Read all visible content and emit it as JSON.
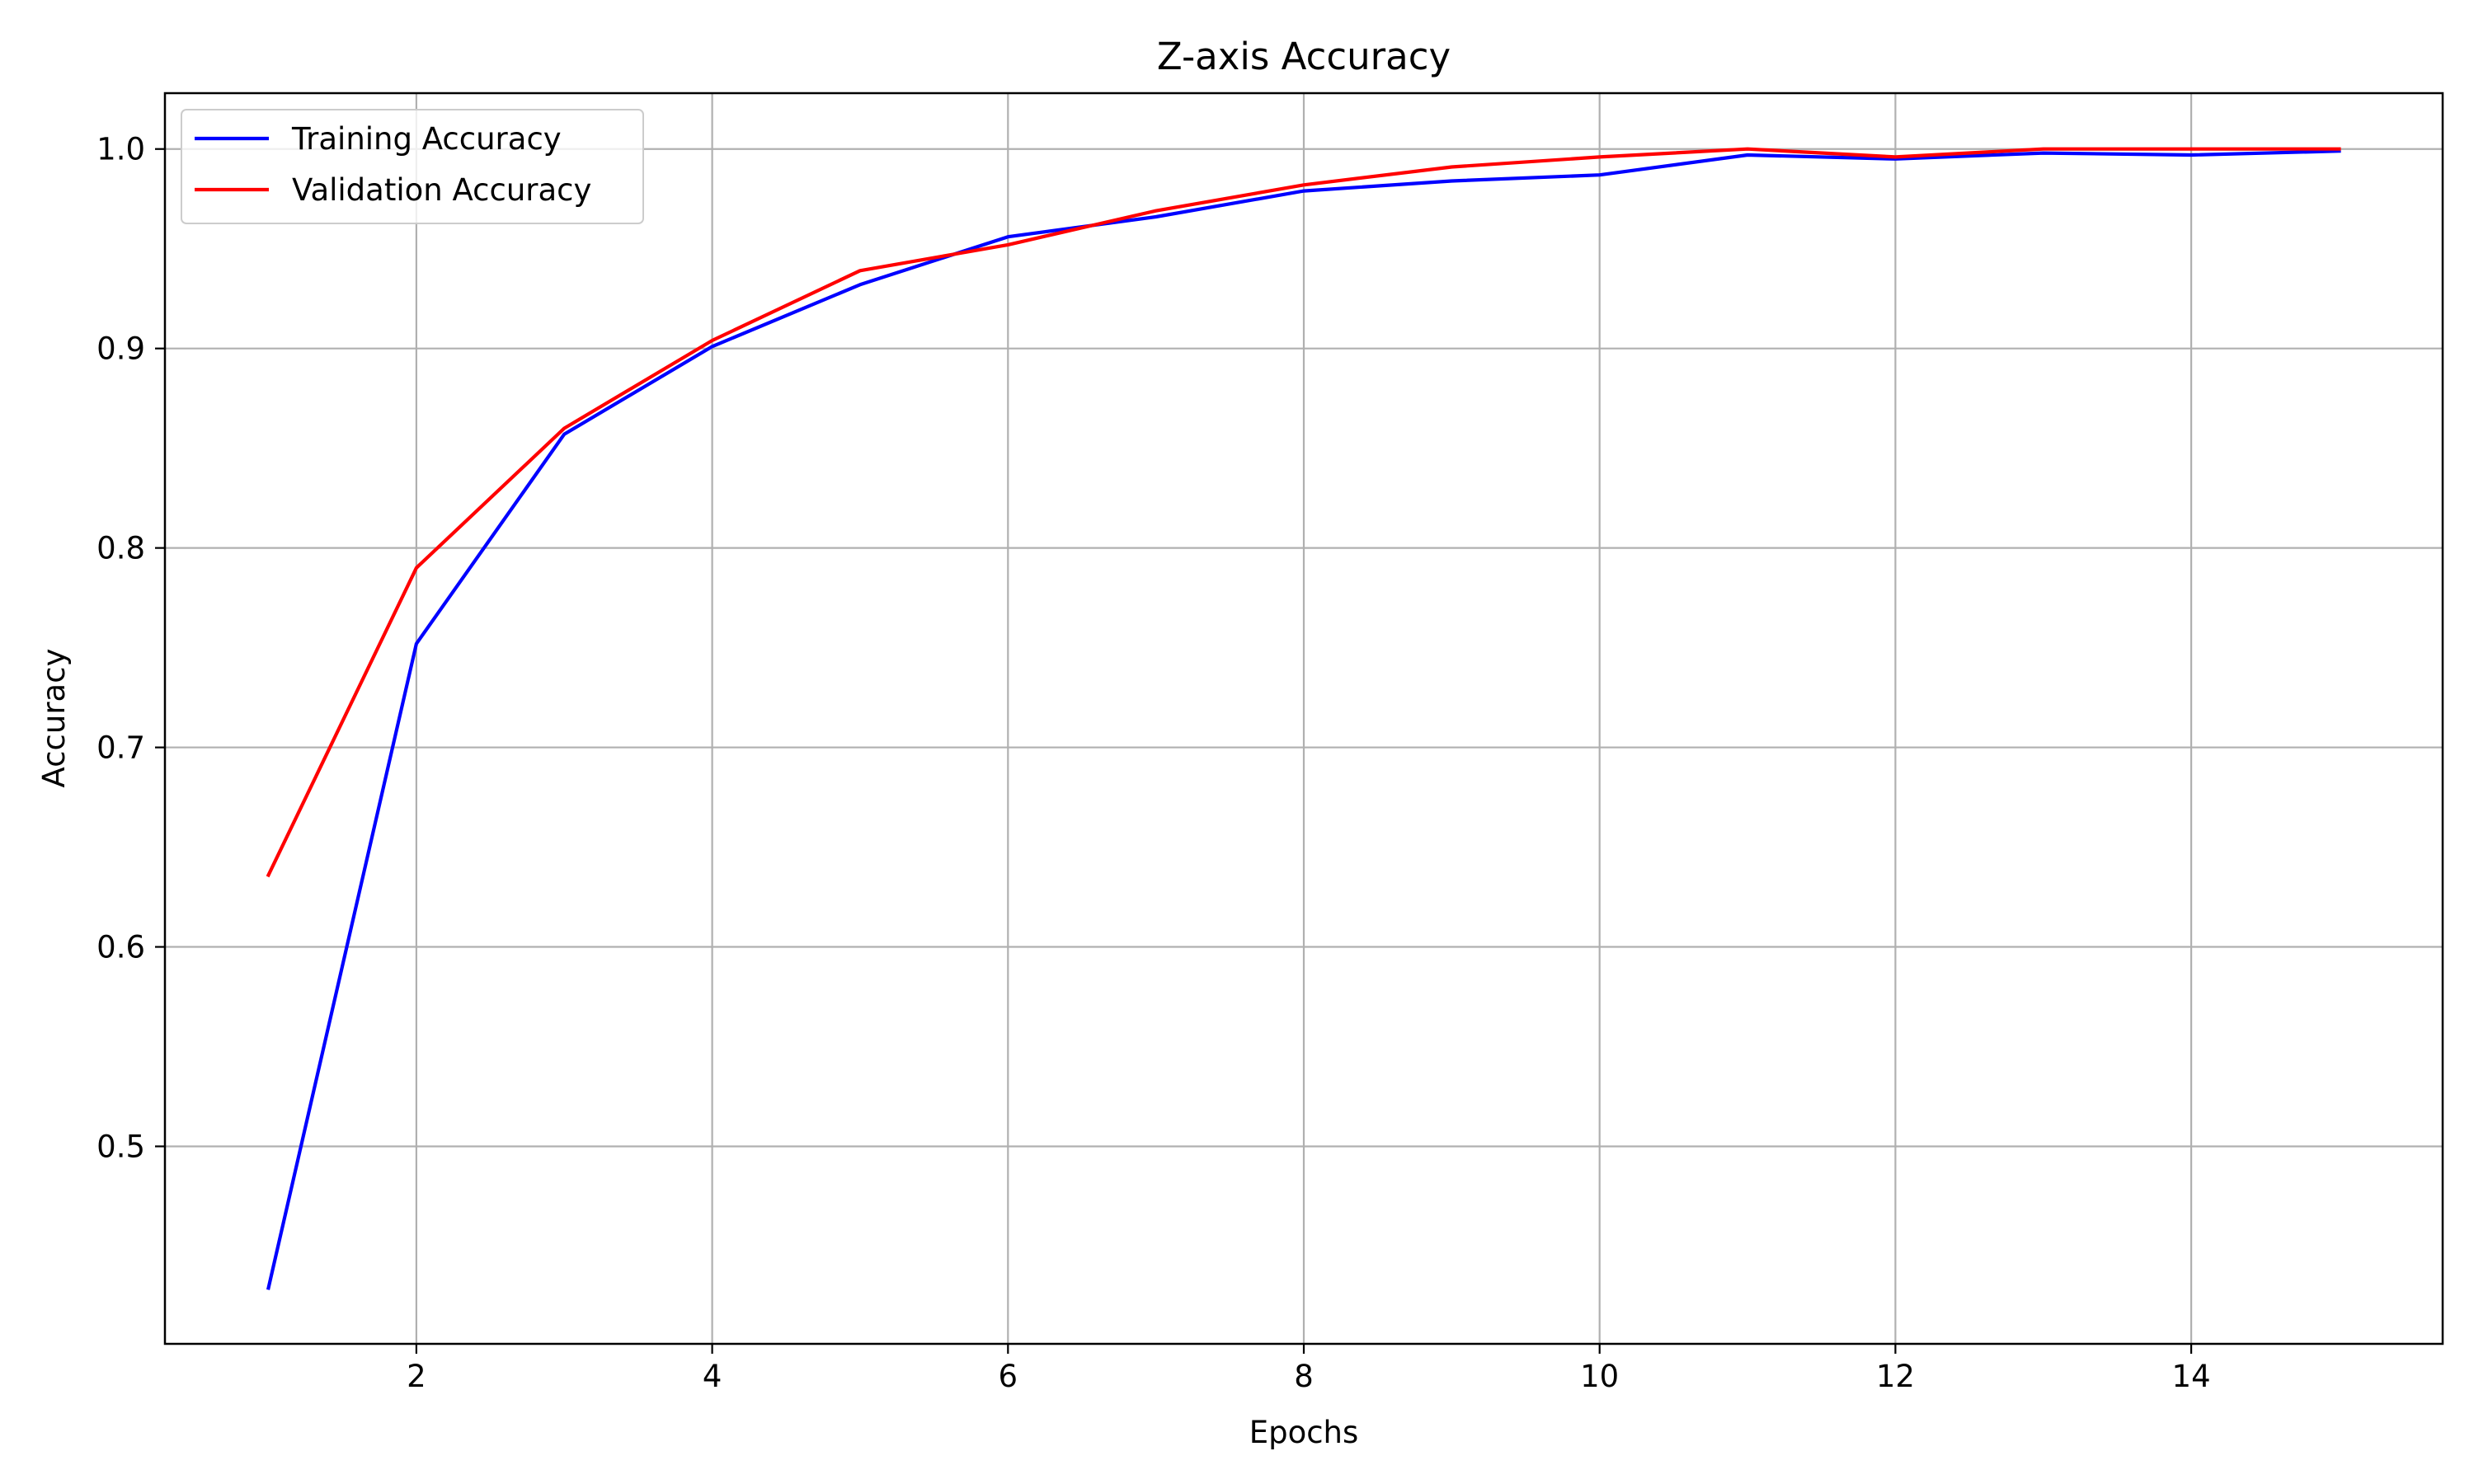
{
  "chart_data": {
    "type": "line",
    "title": "Z-axis Accuracy",
    "xlabel": "Epochs",
    "ylabel": "Accuracy",
    "x": [
      1,
      2,
      3,
      4,
      5,
      6,
      7,
      8,
      9,
      10,
      11,
      12,
      13,
      14,
      15
    ],
    "xlim": [
      0.3,
      15.7
    ],
    "ylim": [
      0.401,
      1.028
    ],
    "xticks": [
      2,
      4,
      6,
      8,
      10,
      12,
      14
    ],
    "xtick_labels": [
      "2",
      "4",
      "6",
      "8",
      "10",
      "12",
      "14"
    ],
    "yticks": [
      0.5,
      0.6,
      0.7,
      0.8,
      0.9,
      1.0
    ],
    "ytick_labels": [
      "0.5",
      "0.6",
      "0.7",
      "0.8",
      "0.9",
      "1.0"
    ],
    "grid": true,
    "legend_position": "upper-left",
    "series": [
      {
        "name": "Training Accuracy",
        "color": "#0000ff",
        "values": [
          0.429,
          0.752,
          0.857,
          0.901,
          0.932,
          0.956,
          0.966,
          0.979,
          0.984,
          0.987,
          0.997,
          0.995,
          0.998,
          0.997,
          0.999
        ]
      },
      {
        "name": "Validation Accuracy",
        "color": "#ff0000",
        "values": [
          0.636,
          0.79,
          0.86,
          0.904,
          0.939,
          0.952,
          0.969,
          0.982,
          0.991,
          0.996,
          1.0,
          0.996,
          1.0,
          1.0,
          1.0
        ]
      }
    ]
  }
}
